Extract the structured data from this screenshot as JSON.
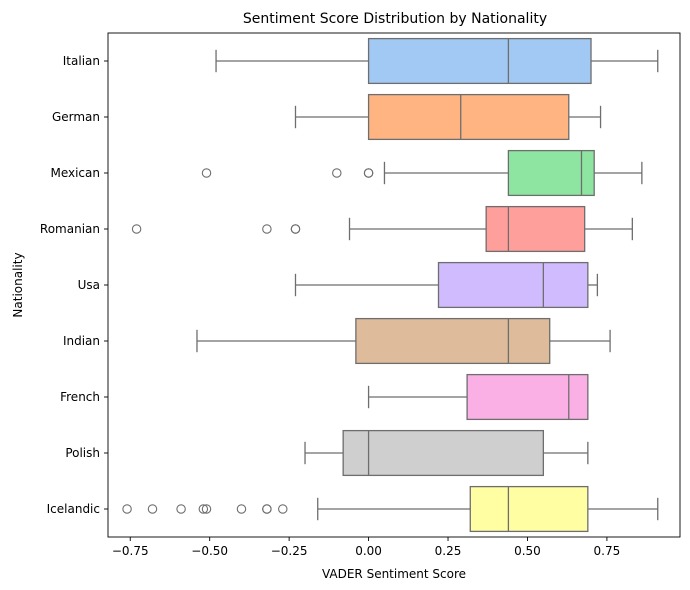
{
  "chart_data": {
    "type": "box",
    "orientation": "horizontal",
    "title": "Sentiment Score Distribution by Nationality",
    "xlabel": "VADER Sentiment Score",
    "ylabel": "Nationality",
    "xlim": [
      -0.82,
      0.98
    ],
    "xticks": [
      -0.75,
      -0.5,
      -0.25,
      0.0,
      0.25,
      0.5,
      0.75
    ],
    "xtick_labels": [
      "−0.75",
      "−0.50",
      "−0.25",
      "0.00",
      "0.25",
      "0.50",
      "0.75"
    ],
    "grid": false,
    "categories": [
      "Italian",
      "German",
      "Mexican",
      "Romanian",
      "Usa",
      "Indian",
      "French",
      "Polish",
      "Icelandic"
    ],
    "boxes": [
      {
        "label": "Italian",
        "color": "#a1c9f4",
        "whisker_low": -0.48,
        "q1": 0.0,
        "median": 0.44,
        "q3": 0.7,
        "whisker_high": 0.91,
        "outliers": []
      },
      {
        "label": "German",
        "color": "#ffb482",
        "whisker_low": -0.23,
        "q1": 0.0,
        "median": 0.29,
        "q3": 0.63,
        "whisker_high": 0.73,
        "outliers": []
      },
      {
        "label": "Mexican",
        "color": "#8de5a1",
        "whisker_low": 0.05,
        "q1": 0.44,
        "median": 0.67,
        "q3": 0.71,
        "whisker_high": 0.86,
        "outliers": [
          -0.51,
          -0.1,
          0.0,
          0.0
        ]
      },
      {
        "label": "Romanian",
        "color": "#ff9f9b",
        "whisker_low": -0.06,
        "q1": 0.37,
        "median": 0.44,
        "q3": 0.68,
        "whisker_high": 0.83,
        "outliers": [
          -0.73,
          -0.32,
          -0.23,
          -0.23
        ]
      },
      {
        "label": "Usa",
        "color": "#d0bbff",
        "whisker_low": -0.23,
        "q1": 0.22,
        "median": 0.55,
        "q3": 0.69,
        "whisker_high": 0.72,
        "outliers": []
      },
      {
        "label": "Indian",
        "color": "#debb9b",
        "whisker_low": -0.54,
        "q1": -0.04,
        "median": 0.44,
        "q3": 0.57,
        "whisker_high": 0.76,
        "outliers": []
      },
      {
        "label": "French",
        "color": "#fab0e4",
        "whisker_low": 0.0,
        "q1": 0.31,
        "median": 0.63,
        "q3": 0.69,
        "whisker_high": 0.69,
        "outliers": []
      },
      {
        "label": "Polish",
        "color": "#cfcfcf",
        "whisker_low": -0.2,
        "q1": -0.08,
        "median": 0.0,
        "q3": 0.55,
        "whisker_high": 0.69,
        "outliers": []
      },
      {
        "label": "Icelandic",
        "color": "#fffea3",
        "whisker_low": -0.16,
        "q1": 0.32,
        "median": 0.44,
        "q3": 0.69,
        "whisker_high": 0.91,
        "outliers": [
          -0.76,
          -0.68,
          -0.59,
          -0.52,
          -0.51,
          -0.4,
          -0.32,
          -0.32,
          -0.27
        ]
      }
    ]
  }
}
